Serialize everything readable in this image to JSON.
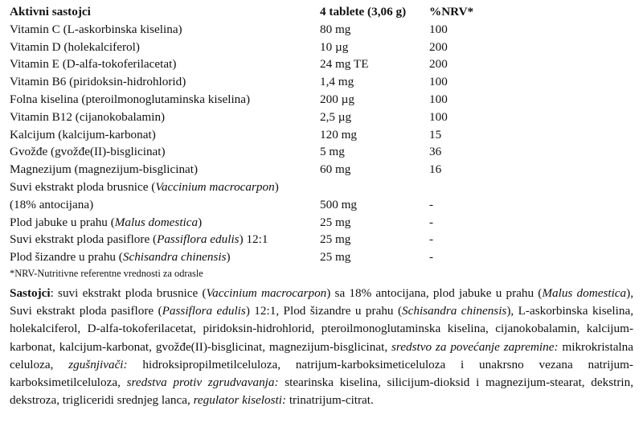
{
  "table": {
    "headers": [
      "Aktivni sastojci",
      "4 tablete (3,06 g)",
      "%NRV*"
    ],
    "rows": [
      {
        "name": "Vitamin C (L-askorbinska kiselina)",
        "amount": "80 mg",
        "nrv": "100"
      },
      {
        "name": "Vitamin D (holekalciferol)",
        "amount": "10 µg",
        "nrv": "200"
      },
      {
        "name": "Vitamin E (D-alfa-tokoferilacetat)",
        "amount": "24 mg TE",
        "nrv": "200"
      },
      {
        "name": "Vitamin B6 (piridoksin-hidrohlorid)",
        "amount": "1,4 mg",
        "nrv": "100"
      },
      {
        "name": "Folna kiselina (pteroilmonoglutaminska kiselina)",
        "amount": "200 µg",
        "nrv": "100"
      },
      {
        "name": "Vitamin B12 (cijanokobalamin)",
        "amount": "2,5 µg",
        "nrv": "100"
      },
      {
        "name": "Kalcijum (kalcijum-karbonat)",
        "amount": "120 mg",
        "nrv": "15"
      },
      {
        "name": "Gvožđe (gvožđe(II)-bisglicinat)",
        "amount": "5 mg",
        "nrv": "36"
      },
      {
        "name": "Magnezijum (magnezijum-bisglicinat)",
        "amount": "60 mg",
        "nrv": "16"
      }
    ],
    "special_rows": {
      "cranberry_pre": "Suvi ekstrakt ploda brusnice (",
      "cranberry_latin": "Vaccinium macrocarpon",
      "cranberry_post": ")",
      "cranberry_line2": "(18% antocijana)",
      "cranberry_amount": "500 mg",
      "cranberry_nrv": "-",
      "apple_pre": "Plod jabuke u prahu (",
      "apple_latin": "Malus domestica",
      "apple_post": ")",
      "apple_amount": "25 mg",
      "apple_nrv": "-",
      "passion_pre": "Suvi ekstrakt ploda pasiflore (",
      "passion_latin": "Passiflora edulis",
      "passion_post": ") 12:1",
      "passion_amount": "25 mg",
      "passion_nrv": "-",
      "schis_pre": "Plod šizandre u prahu (",
      "schis_latin": "Schisandra chinensis",
      "schis_post": ")",
      "schis_amount": "25 mg",
      "schis_nrv": "-"
    }
  },
  "footnote": "*NRV-Nutritivne referentne vrednosti za odrasle",
  "composition": {
    "label": "Sastojci",
    "p1": ": suvi ekstrakt ploda brusnice (",
    "l1": "Vaccinium macrocarpon",
    "p2": ") sa 18% antocijana, plod jabuke u prahu (",
    "l2": "Malus domestica",
    "p3": "), Suvi ekstrakt ploda pasiflore (",
    "l3": "Passiflora edulis",
    "p4": ") 12:1, Plod šizandre u prahu (",
    "l4": "Schisandra chinensis",
    "p5": "), L-askorbinska kiselina, holekalciferol, D-alfa-tokoferilacetat, piridoksin-hidrohlorid, pteroilmonoglutaminska kiselina, cijanokobalamin, kalcijum-karbonat, kalcijum-karbonat, gvožđe(II)-bisglicinat, magnezijum-bisglicinat, ",
    "i1": "sredstvo za povećanje zapremine:",
    "p6": " mikrokristalna celuloza, ",
    "i2": "zgušnjivači:",
    "p7": " hidroksipropilmetilceluloza, natrijum-karboksimeticeluloza i unakrsno vezana natrijum-karboksimetilceluloza, ",
    "i3": "sredstva protiv zgrudvavanja:",
    "p8": " stearinska kiselina, silicijum-dioksid i magnezijum-stearat, dekstrin, dekstroza, trigliceridi srednjeg lanca, ",
    "i4": "regulator kiselosti:",
    "p9": " trinatrijum-citrat."
  }
}
